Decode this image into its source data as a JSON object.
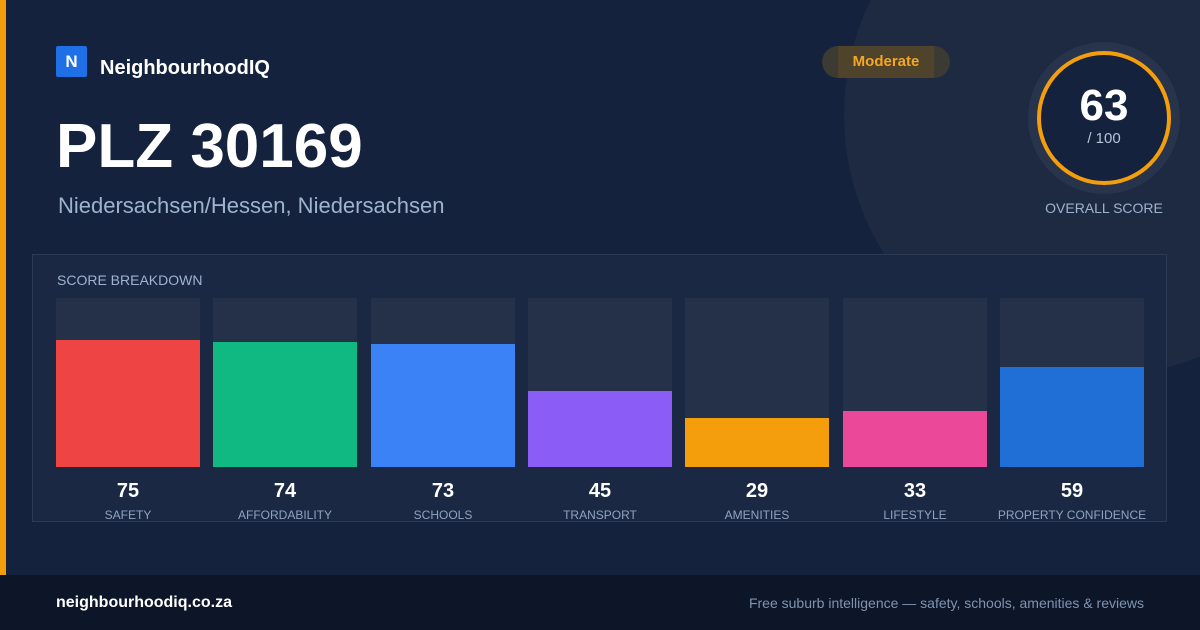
{
  "brand": {
    "logo_letter": "N",
    "name": "NeighbourhoodIQ",
    "color": "#1f6fe6"
  },
  "header": {
    "title": "PLZ 30169",
    "location": "Niedersachsen/Hessen, Niedersachsen"
  },
  "rating": {
    "label": "Moderate",
    "color": "#f5a623"
  },
  "overall_score": {
    "value": "63",
    "denominator": "/ 100",
    "caption": "OVERALL SCORE",
    "ring_color": "#f59e0b"
  },
  "breakdown": {
    "title": "SCORE BREAKDOWN",
    "max": 100,
    "items": [
      {
        "label": "SAFETY",
        "value": 75,
        "color": "#ef4444"
      },
      {
        "label": "AFFORDABILITY",
        "value": 74,
        "color": "#10b981"
      },
      {
        "label": "SCHOOLS",
        "value": 73,
        "color": "#3b82f6"
      },
      {
        "label": "TRANSPORT",
        "value": 45,
        "color": "#8b5cf6"
      },
      {
        "label": "AMENITIES",
        "value": 29,
        "color": "#f59e0b"
      },
      {
        "label": "LIFESTYLE",
        "value": 33,
        "color": "#ec4899"
      },
      {
        "label": "PROPERTY CONFIDENCE",
        "value": 59,
        "color": "#1f6fd6"
      }
    ]
  },
  "footer": {
    "domain": "neighbourhoodiq.co.za",
    "tagline": "Free suburb intelligence — safety, schools, amenities & reviews"
  }
}
